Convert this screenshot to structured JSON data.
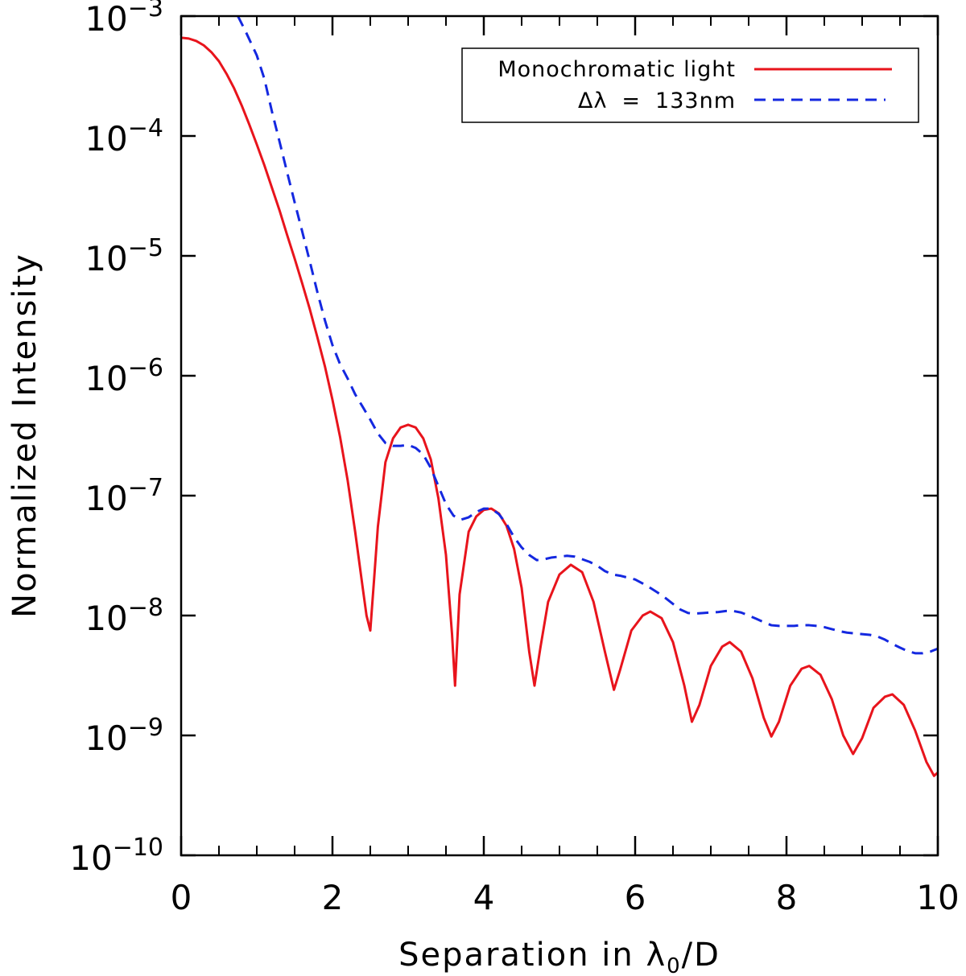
{
  "chart_data": {
    "type": "line",
    "xlabel": "Separation in λ0/D",
    "xlabel_parts": {
      "prefix": "Separation in λ",
      "subscript": "0",
      "suffix": "/D"
    },
    "ylabel": "Normalized Intensity",
    "xlim": [
      0,
      10
    ],
    "ylim": [
      1e-10,
      0.001
    ],
    "yscale": "log",
    "x_ticks": [
      0,
      2,
      4,
      6,
      8,
      10
    ],
    "x_tick_labels": [
      "0",
      "2",
      "4",
      "6",
      "8",
      "10"
    ],
    "y_ticks": [
      {
        "value": 0.001,
        "base": "10",
        "exp": "−3"
      },
      {
        "value": 0.0001,
        "base": "10",
        "exp": "−4"
      },
      {
        "value": 1e-05,
        "base": "10",
        "exp": "−5"
      },
      {
        "value": 1e-06,
        "base": "10",
        "exp": "−6"
      },
      {
        "value": 1e-07,
        "base": "10",
        "exp": "−7"
      },
      {
        "value": 1e-08,
        "base": "10",
        "exp": "−8"
      },
      {
        "value": 1e-09,
        "base": "10",
        "exp": "−9"
      },
      {
        "value": 1e-10,
        "base": "10",
        "exp": "−10"
      }
    ],
    "legend": {
      "placement": "top-right"
    },
    "series": [
      {
        "name": "Monochromatic light",
        "color": "#e8141c",
        "style": "solid",
        "points": [
          [
            0.0,
            0.00066
          ],
          [
            0.1,
            0.00065
          ],
          [
            0.2,
            0.00062
          ],
          [
            0.3,
            0.00057
          ],
          [
            0.4,
            0.0005
          ],
          [
            0.5,
            0.00042
          ],
          [
            0.6,
            0.00033
          ],
          [
            0.7,
            0.00025
          ],
          [
            0.8,
            0.00018
          ],
          [
            0.9,
            0.000125
          ],
          [
            1.0,
            8.5e-05
          ],
          [
            1.1,
            5.7e-05
          ],
          [
            1.2,
            3.7e-05
          ],
          [
            1.3,
            2.4e-05
          ],
          [
            1.4,
            1.5e-05
          ],
          [
            1.5,
            9.5e-06
          ],
          [
            1.6,
            5.9e-06
          ],
          [
            1.7,
            3.6e-06
          ],
          [
            1.8,
            2.1e-06
          ],
          [
            1.9,
            1.2e-06
          ],
          [
            2.0,
            6.3e-07
          ],
          [
            2.1,
            3.1e-07
          ],
          [
            2.2,
            1.35e-07
          ],
          [
            2.3,
            5e-08
          ],
          [
            2.4,
            1.7e-08
          ],
          [
            2.45,
            1e-08
          ],
          [
            2.5,
            7.5e-09
          ],
          [
            2.55,
            2e-08
          ],
          [
            2.6,
            5.5e-08
          ],
          [
            2.7,
            1.9e-07
          ],
          [
            2.8,
            3e-07
          ],
          [
            2.9,
            3.7e-07
          ],
          [
            3.0,
            3.9e-07
          ],
          [
            3.1,
            3.7e-07
          ],
          [
            3.2,
            3e-07
          ],
          [
            3.3,
            2e-07
          ],
          [
            3.4,
            9.5e-08
          ],
          [
            3.5,
            3.2e-08
          ],
          [
            3.58,
            7e-09
          ],
          [
            3.62,
            2.6e-09
          ],
          [
            3.68,
            1.5e-08
          ],
          [
            3.8,
            5e-08
          ],
          [
            3.9,
            6.7e-08
          ],
          [
            4.0,
            7.6e-08
          ],
          [
            4.1,
            7.8e-08
          ],
          [
            4.2,
            7.1e-08
          ],
          [
            4.3,
            5.6e-08
          ],
          [
            4.4,
            3.6e-08
          ],
          [
            4.5,
            1.7e-08
          ],
          [
            4.6,
            5e-09
          ],
          [
            4.67,
            2.6e-09
          ],
          [
            4.75,
            5.5e-09
          ],
          [
            4.85,
            1.3e-08
          ],
          [
            5.0,
            2.2e-08
          ],
          [
            5.15,
            2.65e-08
          ],
          [
            5.3,
            2.3e-08
          ],
          [
            5.45,
            1.3e-08
          ],
          [
            5.6,
            5e-09
          ],
          [
            5.72,
            2.4e-09
          ],
          [
            5.8,
            3.5e-09
          ],
          [
            5.95,
            7.5e-09
          ],
          [
            6.1,
            1e-08
          ],
          [
            6.2,
            1.08e-08
          ],
          [
            6.35,
            9.5e-09
          ],
          [
            6.5,
            6e-09
          ],
          [
            6.65,
            2.6e-09
          ],
          [
            6.75,
            1.3e-09
          ],
          [
            6.85,
            1.8e-09
          ],
          [
            7.0,
            3.8e-09
          ],
          [
            7.15,
            5.5e-09
          ],
          [
            7.25,
            6e-09
          ],
          [
            7.4,
            5e-09
          ],
          [
            7.55,
            3e-09
          ],
          [
            7.7,
            1.4e-09
          ],
          [
            7.8,
            9.8e-10
          ],
          [
            7.9,
            1.3e-09
          ],
          [
            8.05,
            2.6e-09
          ],
          [
            8.2,
            3.6e-09
          ],
          [
            8.3,
            3.8e-09
          ],
          [
            8.45,
            3.2e-09
          ],
          [
            8.6,
            2e-09
          ],
          [
            8.75,
            1e-09
          ],
          [
            8.88,
            7e-10
          ],
          [
            9.0,
            9.5e-10
          ],
          [
            9.15,
            1.7e-09
          ],
          [
            9.3,
            2.1e-09
          ],
          [
            9.4,
            2.2e-09
          ],
          [
            9.55,
            1.8e-09
          ],
          [
            9.7,
            1.1e-09
          ],
          [
            9.85,
            6e-10
          ],
          [
            9.95,
            4.6e-10
          ],
          [
            10.0,
            4.9e-10
          ]
        ]
      },
      {
        "name": "Δλ = 133nm",
        "label_parts": {
          "symbol": "Δλ",
          "equals": "=",
          "value": "133nm"
        },
        "color": "#1428e0",
        "style": "dashed",
        "points": [
          [
            0.75,
            0.001
          ],
          [
            0.85,
            0.00075
          ],
          [
            1.0,
            0.00047
          ],
          [
            1.1,
            0.0003
          ],
          [
            1.2,
            0.00016
          ],
          [
            1.3,
            9e-05
          ],
          [
            1.4,
            5e-05
          ],
          [
            1.5,
            2.8e-05
          ],
          [
            1.6,
            1.6e-05
          ],
          [
            1.7,
            9e-06
          ],
          [
            1.8,
            5e-06
          ],
          [
            1.9,
            2.9e-06
          ],
          [
            2.0,
            1.8e-06
          ],
          [
            2.1,
            1.25e-06
          ],
          [
            2.2,
            9.5e-07
          ],
          [
            2.3,
            7e-07
          ],
          [
            2.4,
            5.5e-07
          ],
          [
            2.5,
            4.3e-07
          ],
          [
            2.6,
            3.3e-07
          ],
          [
            2.7,
            2.75e-07
          ],
          [
            2.8,
            2.6e-07
          ],
          [
            2.9,
            2.6e-07
          ],
          [
            3.0,
            2.65e-07
          ],
          [
            3.1,
            2.5e-07
          ],
          [
            3.2,
            2.2e-07
          ],
          [
            3.3,
            1.7e-07
          ],
          [
            3.4,
            1.2e-07
          ],
          [
            3.5,
            8.5e-08
          ],
          [
            3.6,
            6.8e-08
          ],
          [
            3.7,
            6.3e-08
          ],
          [
            3.8,
            6.6e-08
          ],
          [
            3.9,
            7.3e-08
          ],
          [
            4.0,
            7.8e-08
          ],
          [
            4.1,
            7.8e-08
          ],
          [
            4.2,
            7e-08
          ],
          [
            4.3,
            5.8e-08
          ],
          [
            4.4,
            4.5e-08
          ],
          [
            4.5,
            3.7e-08
          ],
          [
            4.6,
            3.2e-08
          ],
          [
            4.7,
            2.9e-08
          ],
          [
            4.8,
            2.95e-08
          ],
          [
            4.9,
            3.05e-08
          ],
          [
            5.0,
            3.1e-08
          ],
          [
            5.1,
            3.15e-08
          ],
          [
            5.2,
            3.1e-08
          ],
          [
            5.3,
            2.95e-08
          ],
          [
            5.4,
            2.8e-08
          ],
          [
            5.5,
            2.6e-08
          ],
          [
            5.6,
            2.35e-08
          ],
          [
            5.7,
            2.2e-08
          ],
          [
            5.8,
            2.15e-08
          ],
          [
            6.0,
            2e-08
          ],
          [
            6.1,
            1.85e-08
          ],
          [
            6.2,
            1.7e-08
          ],
          [
            6.3,
            1.55e-08
          ],
          [
            6.4,
            1.4e-08
          ],
          [
            6.5,
            1.25e-08
          ],
          [
            6.6,
            1.12e-08
          ],
          [
            6.7,
            1.05e-08
          ],
          [
            6.8,
            1.04e-08
          ],
          [
            6.9,
            1.05e-08
          ],
          [
            7.0,
            1.06e-08
          ],
          [
            7.1,
            1.07e-08
          ],
          [
            7.2,
            1.09e-08
          ],
          [
            7.3,
            1.09e-08
          ],
          [
            7.4,
            1.06e-08
          ],
          [
            7.5,
            1e-08
          ],
          [
            7.6,
            9.4e-09
          ],
          [
            7.7,
            8.8e-09
          ],
          [
            7.8,
            8.3e-09
          ],
          [
            7.9,
            8.2e-09
          ],
          [
            8.0,
            8.2e-09
          ],
          [
            8.1,
            8.2e-09
          ],
          [
            8.2,
            8.3e-09
          ],
          [
            8.3,
            8.3e-09
          ],
          [
            8.4,
            8.2e-09
          ],
          [
            8.5,
            8e-09
          ],
          [
            8.6,
            7.7e-09
          ],
          [
            8.7,
            7.4e-09
          ],
          [
            8.8,
            7.2e-09
          ],
          [
            8.9,
            7.1e-09
          ],
          [
            9.0,
            7e-09
          ],
          [
            9.1,
            6.9e-09
          ],
          [
            9.2,
            6.7e-09
          ],
          [
            9.3,
            6.3e-09
          ],
          [
            9.4,
            5.8e-09
          ],
          [
            9.5,
            5.4e-09
          ],
          [
            9.6,
            5.05e-09
          ],
          [
            9.7,
            4.85e-09
          ],
          [
            9.8,
            4.85e-09
          ],
          [
            9.9,
            5e-09
          ],
          [
            10.0,
            5.3e-09
          ]
        ]
      }
    ]
  }
}
